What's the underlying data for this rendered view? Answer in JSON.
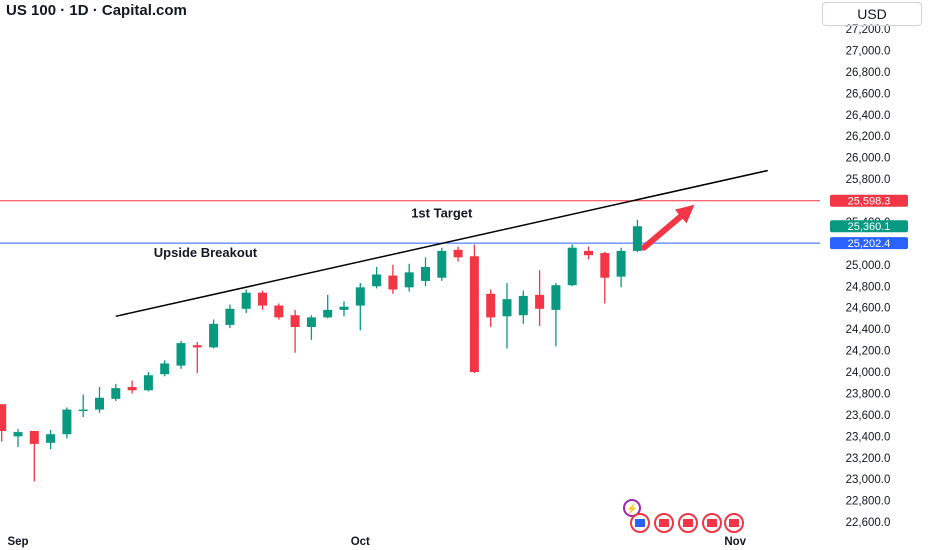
{
  "header": {
    "title": "US 100 · 1D · Capital.com",
    "currency": "USD"
  },
  "colors": {
    "up": "#089981",
    "down": "#f23645",
    "target_line": "#f23645",
    "breakout_line": "#2962ff",
    "trendline": "#000000",
    "arrow": "#f23645"
  },
  "chart_data": {
    "type": "candlestick",
    "ylim": [
      22500,
      27300
    ],
    "y_ticks": [
      "27,200.0",
      "27,000.0",
      "26,800.0",
      "26,600.0",
      "26,400.0",
      "26,200.0",
      "26,000.0",
      "25,800.0",
      "25,600.0",
      "25,400.0",
      "25,200.0",
      "25,000.0",
      "24,800.0",
      "24,600.0",
      "24,400.0",
      "24,200.0",
      "24,000.0",
      "23,800.0",
      "23,600.0",
      "23,400.0",
      "23,200.0",
      "23,000.0",
      "22,800.0",
      "22,600.0"
    ],
    "y_tick_values": [
      27200,
      27000,
      26800,
      26600,
      26400,
      26200,
      26000,
      25800,
      25600,
      25400,
      25200,
      25000,
      24800,
      24600,
      24400,
      24200,
      24000,
      23800,
      23600,
      23400,
      23200,
      23000,
      22800,
      22600
    ],
    "x_labels": [
      {
        "text": "Sep",
        "day": 0
      },
      {
        "text": "Oct",
        "day": 21
      },
      {
        "text": "Nov",
        "day": 44
      }
    ],
    "candles": [
      {
        "day": -1,
        "o": 23700,
        "h": 23700,
        "l": 23350,
        "c": 23450
      },
      {
        "day": 0,
        "o": 23400,
        "h": 23470,
        "l": 23300,
        "c": 23440
      },
      {
        "day": 1,
        "o": 23450,
        "h": 23450,
        "l": 22980,
        "c": 23330
      },
      {
        "day": 2,
        "o": 23340,
        "h": 23460,
        "l": 23280,
        "c": 23420
      },
      {
        "day": 3,
        "o": 23420,
        "h": 23670,
        "l": 23380,
        "c": 23650
      },
      {
        "day": 4,
        "o": 23640,
        "h": 23790,
        "l": 23580,
        "c": 23650
      },
      {
        "day": 5,
        "o": 23650,
        "h": 23860,
        "l": 23620,
        "c": 23760
      },
      {
        "day": 6,
        "o": 23750,
        "h": 23890,
        "l": 23730,
        "c": 23850
      },
      {
        "day": 7,
        "o": 23860,
        "h": 23920,
        "l": 23800,
        "c": 23830
      },
      {
        "day": 8,
        "o": 23830,
        "h": 24000,
        "l": 23820,
        "c": 23970
      },
      {
        "day": 9,
        "o": 23980,
        "h": 24110,
        "l": 23960,
        "c": 24080
      },
      {
        "day": 10,
        "o": 24060,
        "h": 24290,
        "l": 24030,
        "c": 24270
      },
      {
        "day": 11,
        "o": 24250,
        "h": 24280,
        "l": 23990,
        "c": 24230
      },
      {
        "day": 12,
        "o": 24230,
        "h": 24490,
        "l": 24220,
        "c": 24450
      },
      {
        "day": 13,
        "o": 24440,
        "h": 24630,
        "l": 24410,
        "c": 24590
      },
      {
        "day": 14,
        "o": 24590,
        "h": 24770,
        "l": 24550,
        "c": 24740
      },
      {
        "day": 15,
        "o": 24740,
        "h": 24760,
        "l": 24580,
        "c": 24620
      },
      {
        "day": 16,
        "o": 24620,
        "h": 24640,
        "l": 24490,
        "c": 24510
      },
      {
        "day": 17,
        "o": 24530,
        "h": 24580,
        "l": 24180,
        "c": 24420
      },
      {
        "day": 18,
        "o": 24420,
        "h": 24530,
        "l": 24300,
        "c": 24510
      },
      {
        "day": 19,
        "o": 24510,
        "h": 24720,
        "l": 24500,
        "c": 24580
      },
      {
        "day": 20,
        "o": 24580,
        "h": 24660,
        "l": 24520,
        "c": 24610
      },
      {
        "day": 21,
        "o": 24620,
        "h": 24830,
        "l": 24390,
        "c": 24790
      },
      {
        "day": 22,
        "o": 24800,
        "h": 24980,
        "l": 24780,
        "c": 24910
      },
      {
        "day": 23,
        "o": 24900,
        "h": 25000,
        "l": 24730,
        "c": 24770
      },
      {
        "day": 24,
        "o": 24790,
        "h": 25010,
        "l": 24750,
        "c": 24930
      },
      {
        "day": 25,
        "o": 24850,
        "h": 25070,
        "l": 24800,
        "c": 24980
      },
      {
        "day": 26,
        "o": 24880,
        "h": 25160,
        "l": 24850,
        "c": 25130
      },
      {
        "day": 27,
        "o": 25140,
        "h": 25170,
        "l": 25030,
        "c": 25070
      },
      {
        "day": 28,
        "o": 25080,
        "h": 25190,
        "l": 23990,
        "c": 24000
      },
      {
        "day": 29,
        "o": 24730,
        "h": 24770,
        "l": 24420,
        "c": 24510
      },
      {
        "day": 30,
        "o": 24520,
        "h": 24830,
        "l": 24220,
        "c": 24680
      },
      {
        "day": 31,
        "o": 24530,
        "h": 24760,
        "l": 24450,
        "c": 24710
      },
      {
        "day": 32,
        "o": 24720,
        "h": 24950,
        "l": 24430,
        "c": 24590
      },
      {
        "day": 33,
        "o": 24580,
        "h": 24830,
        "l": 24240,
        "c": 24810
      },
      {
        "day": 34,
        "o": 24810,
        "h": 25190,
        "l": 24800,
        "c": 25160
      },
      {
        "day": 35,
        "o": 25130,
        "h": 25170,
        "l": 25050,
        "c": 25090
      },
      {
        "day": 36,
        "o": 25110,
        "h": 25120,
        "l": 24640,
        "c": 24880
      },
      {
        "day": 37,
        "o": 24890,
        "h": 25160,
        "l": 24790,
        "c": 25130
      },
      {
        "day": 38,
        "o": 25130,
        "h": 25420,
        "l": 25120,
        "c": 25360
      }
    ],
    "horizontal_lines": [
      {
        "name": "1st Target",
        "value": 25598.3,
        "label": "25,598.3",
        "color": "#f23645"
      },
      {
        "name": "Upside Breakout",
        "value": 25202.4,
        "label": "25,202.4",
        "color": "#2962ff"
      }
    ],
    "current_price": {
      "value": 25360.1,
      "label": "25,360.1",
      "color": "#089981"
    },
    "annotations": [
      {
        "text": "1st Target",
        "day": 26,
        "value": 25490
      },
      {
        "text": "Upside Breakout",
        "day": 11.5,
        "value": 25120
      }
    ],
    "trendline": {
      "from": {
        "day": 6,
        "value": 24520
      },
      "to": {
        "day": 46,
        "value": 25880
      }
    },
    "arrow": {
      "from": {
        "day": 38.4,
        "value": 25160
      },
      "to": {
        "day": 41.5,
        "value": 25560
      }
    }
  }
}
